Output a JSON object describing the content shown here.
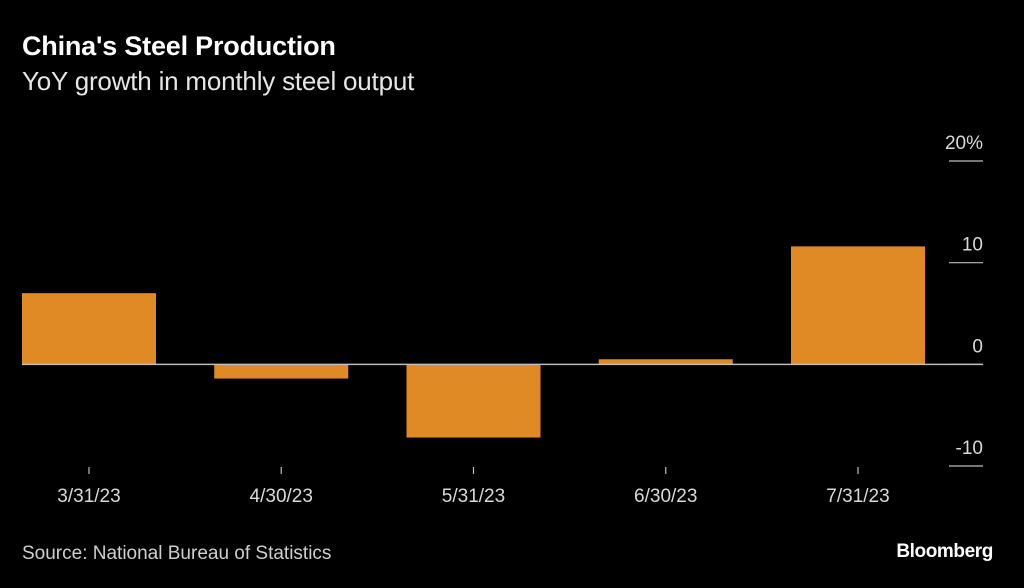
{
  "header": {
    "title": "China's Steel Production",
    "subtitle": "YoY growth in monthly steel output"
  },
  "footer": {
    "source": "Source: National Bureau of Statistics",
    "brand": "Bloomberg"
  },
  "colors": {
    "bar": "#DF8A24",
    "axis": "#bdbdbd",
    "background": "#000000"
  },
  "chart_data": {
    "type": "bar",
    "title": "China's Steel Production",
    "subtitle": "YoY growth in monthly steel output",
    "xlabel": "",
    "ylabel": "",
    "categories": [
      "3/31/23",
      "4/30/23",
      "5/31/23",
      "6/30/23",
      "7/31/23"
    ],
    "values": [
      7.0,
      -1.4,
      -7.2,
      0.5,
      11.6
    ],
    "ylim": [
      -10,
      20
    ],
    "yticks": [
      20,
      10,
      0,
      -10
    ],
    "ytick_labels": [
      "20%",
      "10",
      "0",
      "-10"
    ],
    "y_axis_side": "right",
    "grid": false,
    "legend": "none"
  }
}
